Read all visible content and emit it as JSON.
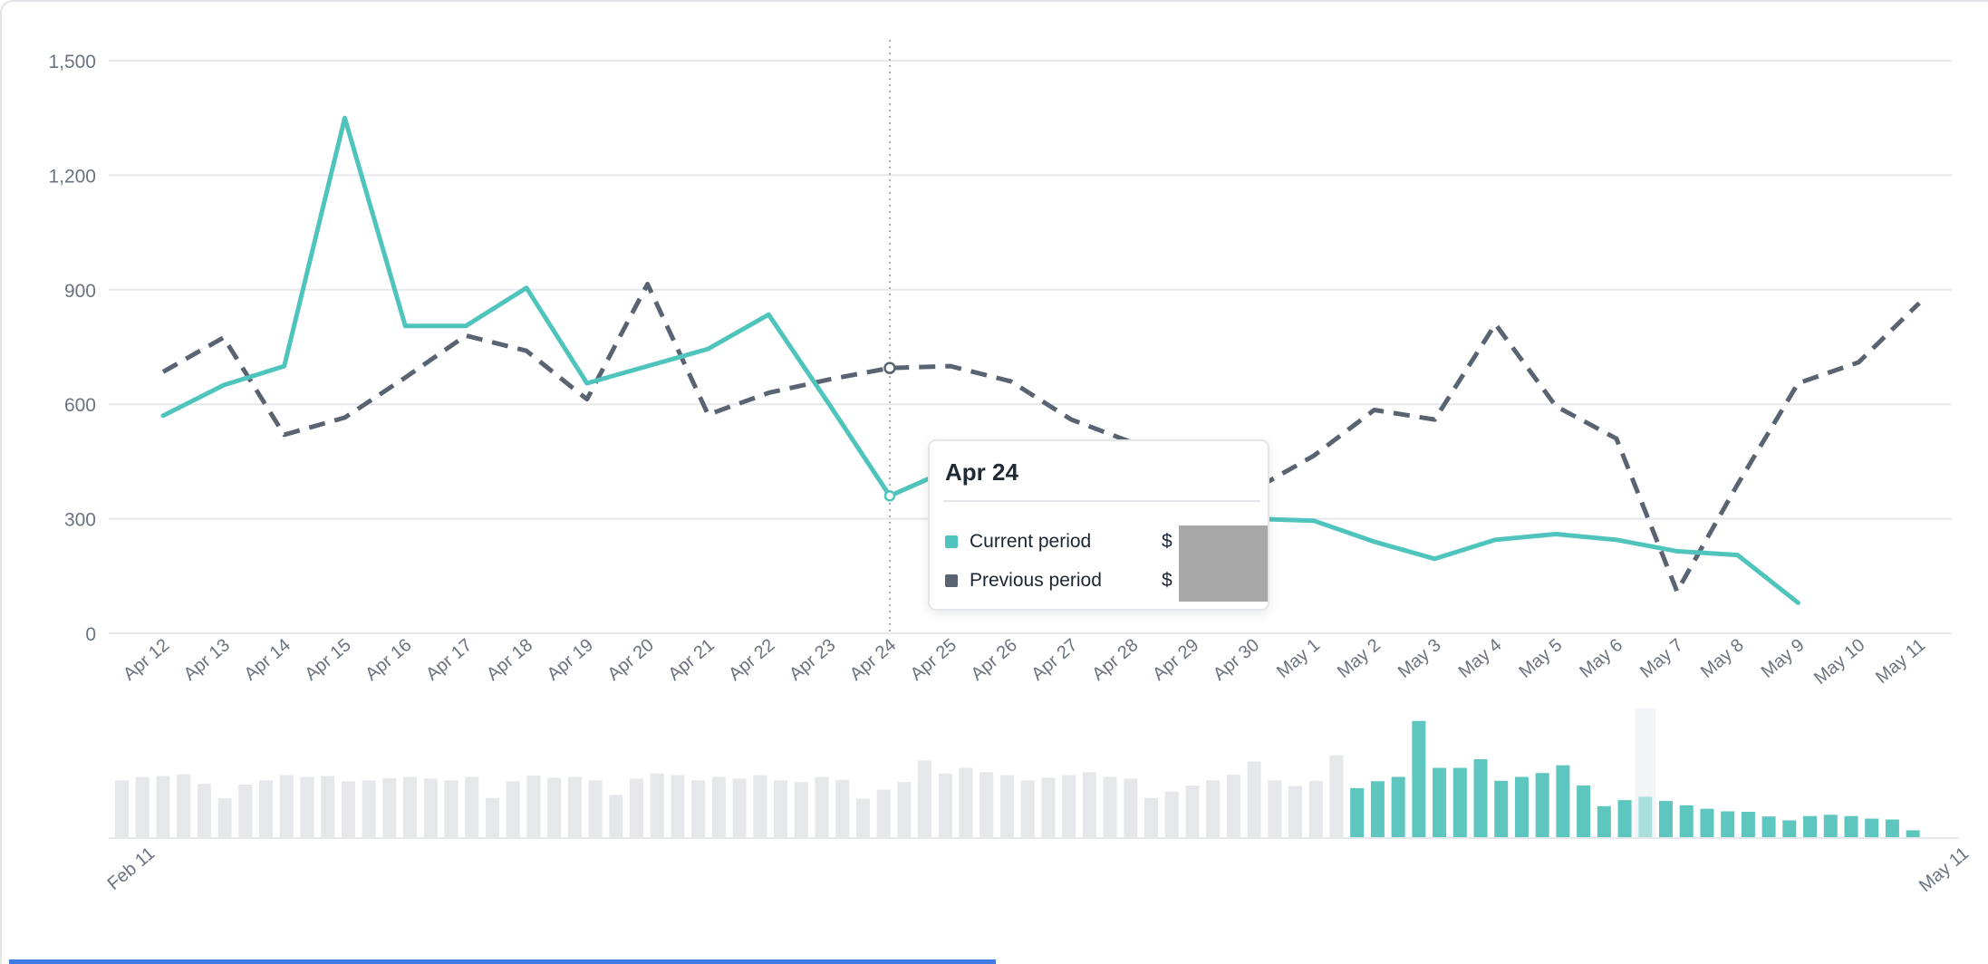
{
  "chart_data": {
    "type": "line",
    "categories": [
      "Apr 12",
      "Apr 13",
      "Apr 14",
      "Apr 15",
      "Apr 16",
      "Apr 17",
      "Apr 18",
      "Apr 19",
      "Apr 20",
      "Apr 21",
      "Apr 22",
      "Apr 23",
      "Apr 24",
      "Apr 25",
      "Apr 26",
      "Apr 27",
      "Apr 28",
      "Apr 29",
      "Apr 30",
      "May 1",
      "May 2",
      "May 3",
      "May 4",
      "May 5",
      "May 6",
      "May 7",
      "May 8",
      "May 9",
      "May 10",
      "May 11"
    ],
    "series": [
      {
        "name": "Current period",
        "style": "solid",
        "color": "#4FC4BC",
        "values": [
          570,
          650,
          700,
          1350,
          805,
          805,
          905,
          655,
          700,
          745,
          835,
          600,
          360,
          430,
          470,
          420,
          370,
          330,
          300,
          295,
          240,
          195,
          245,
          260,
          245,
          215,
          205,
          80,
          null,
          null
        ]
      },
      {
        "name": "Previous period",
        "style": "dashed",
        "color": "#5A6372",
        "values": [
          685,
          775,
          520,
          565,
          670,
          780,
          740,
          613,
          915,
          573,
          630,
          665,
          695,
          700,
          660,
          560,
          500,
          430,
          375,
          465,
          585,
          560,
          810,
          595,
          510,
          110,
          390,
          655,
          710,
          865
        ]
      }
    ],
    "ylim": [
      0,
      1500
    ],
    "yticks": [
      0,
      300,
      600,
      900,
      1200,
      1500
    ],
    "ytick_labels": [
      "0",
      "300",
      "600",
      "900",
      "1,200",
      "1,500"
    ],
    "grid": true,
    "legend_position": "tooltip",
    "hover": {
      "index": 12,
      "category": "Apr 24"
    }
  },
  "tooltip": {
    "title": "Apr 24",
    "rows": [
      {
        "label": "Current period",
        "value_prefix": "$"
      },
      {
        "label": "Previous period",
        "value_prefix": "$"
      }
    ],
    "values_redacted": true
  },
  "minimap": {
    "type": "bar",
    "start_label": "Feb 11",
    "end_label": "May 11",
    "unselected_values": [
      660,
      700,
      710,
      730,
      620,
      450,
      610,
      660,
      720,
      700,
      710,
      650,
      660,
      685,
      700,
      680,
      660,
      700,
      455,
      650,
      715,
      690,
      700,
      660,
      490,
      680,
      740,
      720,
      660,
      700,
      680,
      720,
      660,
      640,
      700,
      665,
      445,
      550,
      640,
      890,
      740,
      805,
      755,
      720,
      660,
      690,
      720,
      755,
      700,
      680,
      455,
      530,
      600,
      660,
      725,
      880,
      660,
      595,
      655,
      950
    ],
    "selected_series": "Current period",
    "highlight": {
      "date": "Apr 26",
      "selected_index": 14
    }
  },
  "colors": {
    "current": "#4FC4BC",
    "previous": "#5A6372",
    "gridline": "#E7E8EB",
    "axis_text": "#6A737F",
    "hover_line": "#A9AEB6",
    "bar_unselected": "#E5E7EA",
    "bar_selected": "#5CC6BF",
    "bar_highlight": "#A9E0DC",
    "highlight_band": "#F2F4F8",
    "redaction": "#A8A8A8",
    "baseline": "#E6E8EB",
    "bottom_bar": "#3E7BE8",
    "tooltip_text": "#212B36"
  }
}
